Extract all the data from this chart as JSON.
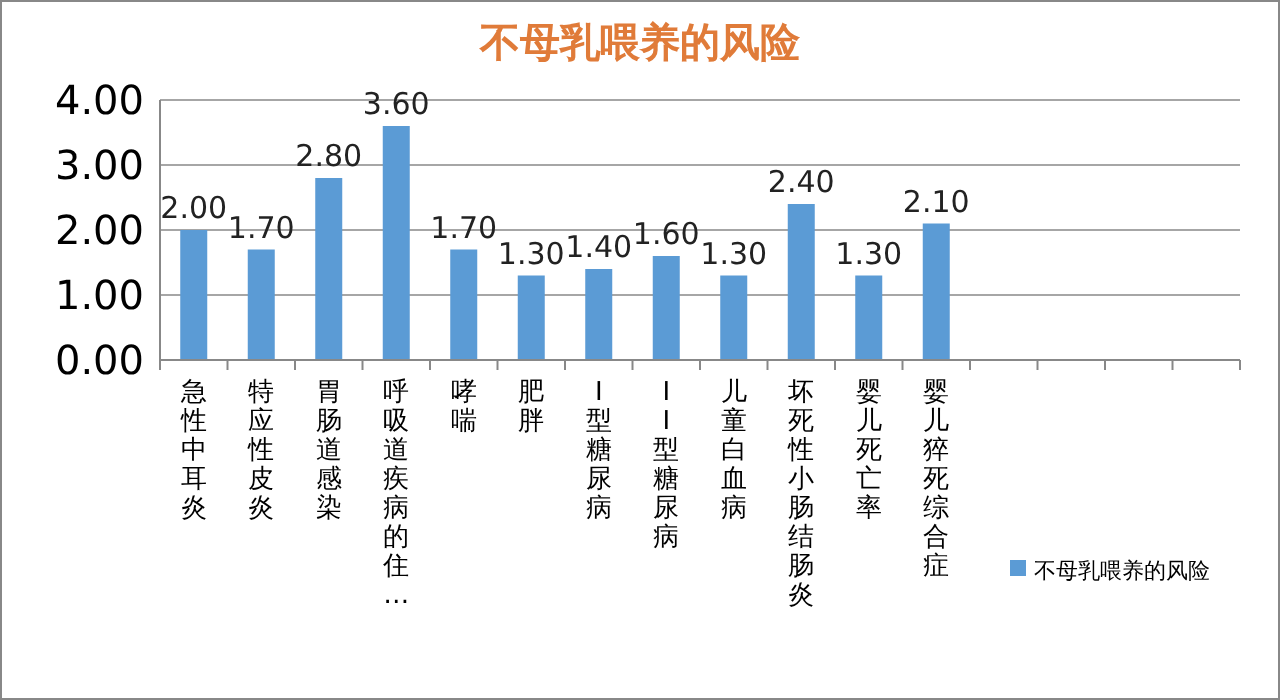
{
  "chart_data": {
    "type": "bar",
    "title": "不母乳喂养的风险",
    "categories": [
      "急性中耳炎",
      "特应性皮炎",
      "胃肠道感染",
      "呼吸道疾病的住…",
      "哮喘",
      "肥胖",
      "I型糖尿病",
      "II型糖尿病",
      "儿童白血病",
      "坏死性小肠结肠炎",
      "婴儿死亡率",
      "婴儿猝死综合症",
      null,
      null,
      null,
      null
    ],
    "series": [
      {
        "name": "不母乳喂养的风险",
        "color": "#5b9bd5",
        "values": [
          2.0,
          1.7,
          2.8,
          3.6,
          1.7,
          1.3,
          1.4,
          1.6,
          1.3,
          2.4,
          1.3,
          2.1,
          null,
          null,
          null,
          null
        ],
        "value_labels": [
          "2.00",
          "1.70",
          "2.80",
          "3.60",
          "1.70",
          "1.30",
          "1.40",
          "1.60",
          "1.30",
          "2.40",
          "1.30",
          "2.10",
          null,
          null,
          null,
          null
        ]
      }
    ],
    "ylim": [
      0,
      4
    ],
    "yticks": [
      {
        "value": 0,
        "label": "0.00"
      },
      {
        "value": 1,
        "label": "1.00"
      },
      {
        "value": 2,
        "label": "2.00"
      },
      {
        "value": 3,
        "label": "3.00"
      },
      {
        "value": 4,
        "label": "4.00"
      }
    ],
    "grid": "y",
    "legend": "right"
  }
}
